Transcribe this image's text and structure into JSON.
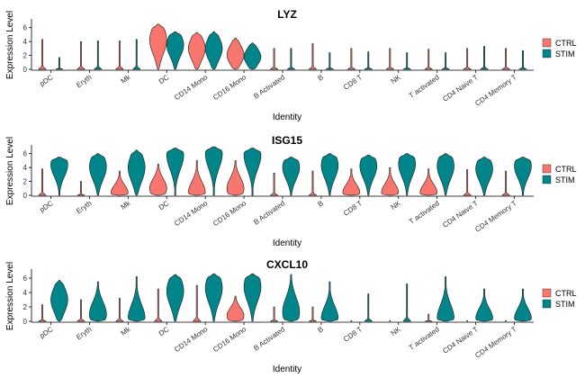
{
  "chart_data": [
    {
      "type": "violin",
      "title": "LYZ",
      "xlabel": "Identity",
      "ylabel": "Expression Level",
      "ylim": [
        0,
        7
      ],
      "yticks": [
        0,
        2,
        4,
        6
      ],
      "categories": [
        "pDC",
        "Eryth",
        "Mk",
        "DC",
        "CD14 Mono",
        "CD16 Mono",
        "B Activated",
        "B",
        "CD8 T",
        "NK",
        "T activated",
        "CD4 Naive T",
        "CD4 Memory T"
      ],
      "legend": {
        "position": "right",
        "entries": [
          "CTRL",
          "STIM"
        ]
      },
      "series": [
        {
          "name": "CTRL",
          "color": "#F8766D",
          "max": [
            4.3,
            4.0,
            4.1,
            6.5,
            5.3,
            4.5,
            3.0,
            3.7,
            3.0,
            3.0,
            2.9,
            3.0,
            3.0
          ],
          "center": [
            0.1,
            0.1,
            0.1,
            4.2,
            3.0,
            2.1,
            0.1,
            0.1,
            0.1,
            0.1,
            0.1,
            0.1,
            0.1
          ],
          "bulk": [
            false,
            false,
            false,
            true,
            true,
            true,
            false,
            false,
            false,
            false,
            false,
            false,
            false
          ]
        },
        {
          "name": "STIM",
          "color": "#00858A",
          "max": [
            1.7,
            4.1,
            4.3,
            5.4,
            5.4,
            3.8,
            3.0,
            2.4,
            2.5,
            2.4,
            2.4,
            3.3,
            2.7
          ],
          "center": [
            0.1,
            0.1,
            0.1,
            3.5,
            3.0,
            1.8,
            0.1,
            0.1,
            0.1,
            0.1,
            0.1,
            0.1,
            0.1
          ],
          "bulk": [
            false,
            false,
            false,
            true,
            true,
            true,
            false,
            false,
            false,
            false,
            false,
            false,
            false
          ]
        }
      ]
    },
    {
      "type": "violin",
      "title": "ISG15",
      "xlabel": "Identity",
      "ylabel": "Expression Level",
      "ylim": [
        0,
        7
      ],
      "yticks": [
        0,
        2,
        4,
        6
      ],
      "categories": [
        "pDC",
        "Eryth",
        "Mk",
        "DC",
        "CD14 Mono",
        "CD16 Mono",
        "B Activated",
        "B",
        "CD8 T",
        "NK",
        "T activated",
        "CD4 Naive T",
        "CD4 Memory T"
      ],
      "legend": {
        "position": "right",
        "entries": [
          "CTRL",
          "STIM"
        ]
      },
      "series": [
        {
          "name": "CTRL",
          "color": "#F8766D",
          "max": [
            3.8,
            2.0,
            3.5,
            4.5,
            5.0,
            5.0,
            3.2,
            3.5,
            3.8,
            4.0,
            3.8,
            3.7,
            3.5
          ],
          "center": [
            0.1,
            0.1,
            0.4,
            1.0,
            0.4,
            1.0,
            0.1,
            0.1,
            0.4,
            0.4,
            0.4,
            0.1,
            0.1
          ],
          "bulk": [
            false,
            false,
            true,
            true,
            true,
            true,
            false,
            false,
            true,
            true,
            true,
            false,
            false
          ]
        },
        {
          "name": "STIM",
          "color": "#00858A",
          "max": [
            5.5,
            6.0,
            6.5,
            6.8,
            7.0,
            6.8,
            5.5,
            6.0,
            5.8,
            6.0,
            6.0,
            5.5,
            5.5
          ],
          "center": [
            4.4,
            4.1,
            4.0,
            5.8,
            6.0,
            5.8,
            4.0,
            4.3,
            4.2,
            4.5,
            4.2,
            3.8,
            4.2
          ],
          "bulk": [
            true,
            true,
            true,
            true,
            true,
            true,
            true,
            true,
            true,
            true,
            true,
            true,
            true
          ]
        }
      ]
    },
    {
      "type": "violin",
      "title": "CXCL10",
      "xlabel": "Identity",
      "ylabel": "Expression Level",
      "ylim": [
        0,
        7
      ],
      "yticks": [
        0,
        2,
        4,
        6
      ],
      "categories": [
        "pDC",
        "Eryth",
        "Mk",
        "DC",
        "CD14 Mono",
        "CD16 Mono",
        "B Activated",
        "B",
        "CD8 T",
        "NK",
        "T activated",
        "CD4 Naive T",
        "CD4 Memory T"
      ],
      "legend": {
        "position": "right",
        "entries": [
          "CTRL",
          "STIM"
        ]
      },
      "series": [
        {
          "name": "CTRL",
          "color": "#F8766D",
          "max": [
            2.3,
            3.0,
            3.2,
            4.5,
            5.0,
            3.5,
            2.0,
            2.0,
            0.1,
            0.1,
            1.0,
            0.1,
            0.1
          ],
          "center": [
            0.1,
            0.1,
            0.1,
            0.1,
            0.1,
            0.8,
            0.1,
            0.1,
            0.1,
            0.1,
            0.1,
            0.1,
            0.1
          ],
          "bulk": [
            false,
            false,
            false,
            false,
            false,
            true,
            false,
            false,
            false,
            false,
            false,
            false,
            false
          ]
        },
        {
          "name": "STIM",
          "color": "#00858A",
          "max": [
            5.7,
            5.5,
            6.2,
            6.5,
            6.6,
            6.6,
            6.5,
            5.5,
            3.8,
            5.2,
            6.2,
            4.5,
            4.5
          ],
          "center": [
            3.0,
            1.0,
            0.4,
            4.2,
            4.6,
            4.8,
            1.3,
            0.4,
            0.1,
            0.1,
            0.4,
            0.4,
            0.4
          ],
          "bulk": [
            true,
            true,
            true,
            true,
            true,
            true,
            true,
            true,
            false,
            false,
            true,
            true,
            true
          ]
        }
      ]
    }
  ]
}
